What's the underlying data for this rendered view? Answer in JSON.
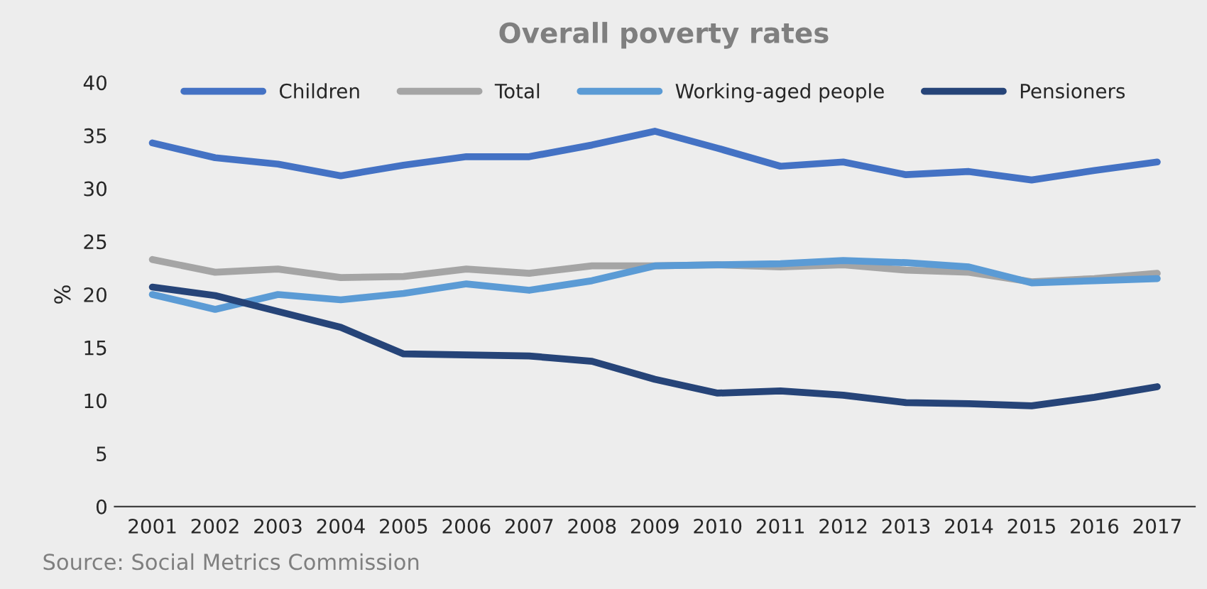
{
  "chart_data": {
    "type": "line",
    "title": "Overall poverty rates",
    "ylabel": "%",
    "categories": [
      "2001",
      "2002",
      "2003",
      "2004",
      "2005",
      "2006",
      "2007",
      "2008",
      "2009",
      "2010",
      "2011",
      "2012",
      "2013",
      "2014",
      "2015",
      "2016",
      "2017"
    ],
    "series": [
      {
        "name": "Children",
        "color": "#4472c4",
        "values": [
          34.3,
          32.9,
          32.3,
          31.2,
          32.2,
          33.0,
          33.0,
          34.1,
          35.4,
          33.8,
          32.1,
          32.5,
          31.3,
          31.6,
          30.8,
          31.7,
          32.5
        ]
      },
      {
        "name": "Total",
        "color": "#a5a5a5",
        "values": [
          23.3,
          22.1,
          22.4,
          21.6,
          21.7,
          22.4,
          22.0,
          22.7,
          22.7,
          22.8,
          22.6,
          22.8,
          22.3,
          22.1,
          21.2,
          21.5,
          22.0
        ]
      },
      {
        "name": "Working-aged people",
        "color": "#5b9bd5",
        "values": [
          20.0,
          18.6,
          20.0,
          19.5,
          20.1,
          21.0,
          20.4,
          21.3,
          22.7,
          22.8,
          22.9,
          23.2,
          23.0,
          22.6,
          21.1,
          21.3,
          21.5
        ]
      },
      {
        "name": "Pensioners",
        "color": "#264478",
        "values": [
          20.7,
          19.9,
          18.4,
          16.9,
          14.4,
          14.3,
          14.2,
          13.7,
          12.0,
          10.7,
          10.9,
          10.5,
          9.8,
          9.7,
          9.5,
          10.3,
          11.3
        ]
      }
    ],
    "ylim": [
      0,
      40
    ],
    "yticks": [
      0,
      5,
      10,
      15,
      20,
      25,
      30,
      35,
      40
    ],
    "grid": false,
    "legend": "top",
    "annotations": [
      "Source: Social Metrics Commission"
    ]
  }
}
